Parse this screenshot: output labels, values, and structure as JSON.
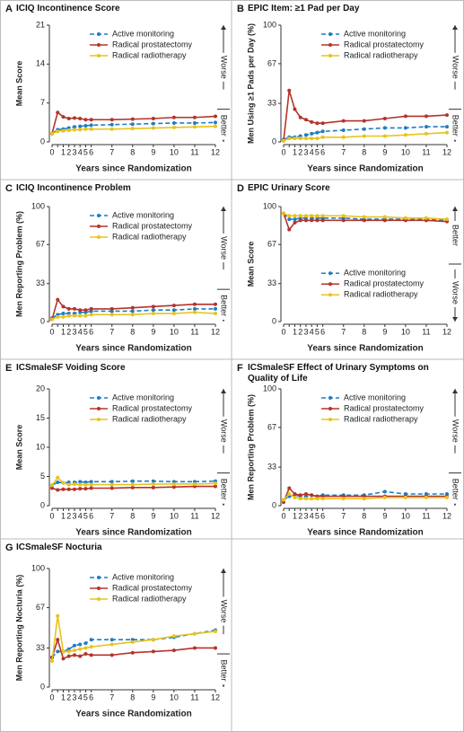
{
  "chart_data": [
    {
      "type": "line",
      "label": "A",
      "title": "ICIQ Incontinence Score",
      "y_label": "Mean Score",
      "x_label": "Years since Randomization",
      "categories": [
        "0",
        null,
        "1",
        "2",
        "3",
        "4",
        "5",
        "6",
        "7",
        "8",
        "9",
        "10",
        "11",
        "12"
      ],
      "ylim": [
        0,
        21
      ],
      "yticks": [
        0,
        7,
        14,
        21
      ],
      "legend": "top",
      "annotations": [
        "Worse",
        "Better"
      ],
      "series": [
        {
          "name": "Active monitoring",
          "color": "#1f7cc4",
          "dashed": true,
          "values": [
            1.5,
            2.2,
            2.3,
            2.5,
            2.7,
            2.8,
            2.9,
            3.0,
            3.1,
            3.2,
            3.3,
            3.4,
            3.4,
            3.5
          ]
        },
        {
          "name": "Radical prostatectomy",
          "color": "#b5332b",
          "dashed": false,
          "values": [
            1.5,
            5.3,
            4.5,
            4.2,
            4.3,
            4.2,
            4.0,
            4.0,
            4.0,
            4.1,
            4.2,
            4.4,
            4.4,
            4.6
          ]
        },
        {
          "name": "Radical radiotherapy",
          "color": "#e8c31c",
          "dashed": false,
          "values": [
            1.5,
            1.9,
            2.0,
            2.1,
            2.2,
            2.2,
            2.3,
            2.3,
            2.3,
            2.4,
            2.5,
            2.6,
            2.7,
            2.8
          ]
        }
      ]
    },
    {
      "type": "line",
      "label": "B",
      "title": "EPIC Item: ≥1 Pad per Day",
      "y_label": "Men Using ≥1 Pads per Day (%)",
      "x_label": "Years since Randomization",
      "categories": [
        "0",
        null,
        "1",
        "2",
        "3",
        "4",
        "5",
        "6",
        "7",
        "8",
        "9",
        "10",
        "11",
        "12"
      ],
      "ylim": [
        0,
        100
      ],
      "yticks": [
        0,
        33,
        67,
        100
      ],
      "legend": "top",
      "annotations": [
        "Worse",
        "Better"
      ],
      "series": [
        {
          "name": "Active monitoring",
          "color": "#1f7cc4",
          "dashed": true,
          "values": [
            2,
            4,
            4,
            5,
            6,
            7,
            8,
            9,
            10,
            11,
            12,
            12,
            13,
            13
          ]
        },
        {
          "name": "Radical prostatectomy",
          "color": "#b5332b",
          "dashed": false,
          "values": [
            1,
            44,
            28,
            21,
            19,
            17,
            16,
            16,
            18,
            18,
            20,
            22,
            22,
            23
          ]
        },
        {
          "name": "Radical radiotherapy",
          "color": "#e8c31c",
          "dashed": false,
          "values": [
            1,
            3,
            3,
            3,
            3,
            3,
            3,
            4,
            4,
            5,
            5,
            6,
            7,
            8
          ]
        }
      ]
    },
    {
      "type": "line",
      "label": "C",
      "title": "ICIQ Incontinence Problem",
      "y_label": "Men Reporting Problem (%)",
      "x_label": "Years since Randomization",
      "categories": [
        "0",
        null,
        "1",
        "2",
        "3",
        "4",
        "5",
        "6",
        "7",
        "8",
        "9",
        "10",
        "11",
        "12"
      ],
      "ylim": [
        0,
        100
      ],
      "yticks": [
        0,
        33,
        67,
        100
      ],
      "legend": "top",
      "annotations": [
        "Worse",
        "Better"
      ],
      "series": [
        {
          "name": "Active monitoring",
          "color": "#1f7cc4",
          "dashed": true,
          "values": [
            3,
            6,
            7,
            7,
            7,
            8,
            8,
            9,
            9,
            9,
            10,
            10,
            11,
            11
          ]
        },
        {
          "name": "Radical prostatectomy",
          "color": "#b5332b",
          "dashed": false,
          "values": [
            2,
            19,
            13,
            11,
            11,
            10,
            10,
            11,
            11,
            12,
            13,
            14,
            15,
            15
          ]
        },
        {
          "name": "Radical radiotherapy",
          "color": "#e8c31c",
          "dashed": false,
          "values": [
            2,
            4,
            4,
            5,
            5,
            5,
            5,
            6,
            6,
            6,
            7,
            7,
            8,
            7
          ]
        }
      ]
    },
    {
      "type": "line",
      "label": "D",
      "title": "EPIC Urinary Score",
      "y_label": "Mean Score",
      "x_label": "Years since Randomization",
      "categories": [
        "0",
        null,
        "1",
        "2",
        "3",
        "4",
        "5",
        "6",
        "7",
        "8",
        "9",
        "10",
        "11",
        "12"
      ],
      "ylim": [
        0,
        100
      ],
      "yticks": [
        0,
        33,
        67,
        100
      ],
      "legend": "bottom",
      "annotations": [
        "Better",
        "Worse"
      ],
      "series": [
        {
          "name": "Active monitoring",
          "color": "#1f7cc4",
          "dashed": true,
          "values": [
            94,
            89,
            89,
            90,
            90,
            90,
            90,
            90,
            90,
            89,
            89,
            89,
            89,
            88
          ]
        },
        {
          "name": "Radical prostatectomy",
          "color": "#b5332b",
          "dashed": false,
          "values": [
            94,
            80,
            86,
            88,
            88,
            88,
            88,
            88,
            88,
            88,
            88,
            88,
            88,
            87
          ]
        },
        {
          "name": "Radical radiotherapy",
          "color": "#e8c31c",
          "dashed": false,
          "values": [
            94,
            92,
            92,
            92,
            92,
            92,
            92,
            92,
            92,
            91,
            91,
            90,
            90,
            89
          ]
        }
      ]
    },
    {
      "type": "line",
      "label": "E",
      "title": "ICSmaleSF Voiding Score",
      "y_label": "Mean Score",
      "x_label": "Years since Randomization",
      "categories": [
        "0",
        null,
        "1",
        "2",
        "3",
        "4",
        "5",
        "6",
        "7",
        "8",
        "9",
        "10",
        "11",
        "12"
      ],
      "ylim": [
        0,
        20
      ],
      "yticks": [
        0,
        5,
        10,
        15,
        20
      ],
      "legend": "top",
      "annotations": [
        "Worse",
        "Better"
      ],
      "series": [
        {
          "name": "Active monitoring",
          "color": "#1f7cc4",
          "dashed": true,
          "values": [
            3.5,
            4.0,
            3.9,
            4.0,
            4.0,
            4.1,
            4.0,
            4.1,
            4.1,
            4.2,
            4.2,
            4.1,
            4.1,
            4.2
          ]
        },
        {
          "name": "Radical prostatectomy",
          "color": "#b5332b",
          "dashed": false,
          "values": [
            3.0,
            2.7,
            2.8,
            2.8,
            2.8,
            2.9,
            2.9,
            3.0,
            3.0,
            3.1,
            3.1,
            3.2,
            3.3,
            3.3
          ]
        },
        {
          "name": "Radical radiotherapy",
          "color": "#e8c31c",
          "dashed": false,
          "values": [
            3.5,
            4.8,
            3.9,
            3.6,
            3.7,
            3.6,
            3.6,
            3.6,
            3.6,
            3.6,
            3.7,
            3.7,
            3.7,
            3.8
          ]
        }
      ]
    },
    {
      "type": "line",
      "label": "F",
      "title": "ICSmaleSF Effect of Urinary Symptoms on Quality of Life",
      "y_label": "Men Reporting Problem (%)",
      "x_label": "Years since Randomization",
      "categories": [
        "0",
        null,
        "1",
        "2",
        "3",
        "4",
        "5",
        "6",
        "7",
        "8",
        "9",
        "10",
        "11",
        "12"
      ],
      "ylim": [
        0,
        100
      ],
      "yticks": [
        0,
        33,
        67,
        100
      ],
      "legend": "top",
      "annotations": [
        "Worse",
        "Better"
      ],
      "series": [
        {
          "name": "Active monitoring",
          "color": "#1f7cc4",
          "dashed": true,
          "values": [
            5,
            8,
            9,
            8,
            8,
            9,
            8,
            9,
            9,
            9,
            12,
            10,
            10,
            10
          ]
        },
        {
          "name": "Radical prostatectomy",
          "color": "#b5332b",
          "dashed": false,
          "values": [
            3,
            15,
            10,
            9,
            10,
            9,
            8,
            8,
            8,
            8,
            8,
            8,
            8,
            8
          ]
        },
        {
          "name": "Radical radiotherapy",
          "color": "#e8c31c",
          "dashed": false,
          "values": [
            5,
            10,
            7,
            6,
            6,
            6,
            6,
            6,
            6,
            6,
            7,
            7,
            7,
            7
          ]
        }
      ]
    },
    {
      "type": "line",
      "label": "G",
      "title": "ICSmaleSF Nocturia",
      "y_label": "Men Reporting Nocturia (%)",
      "x_label": "Years since Randomization",
      "categories": [
        "0",
        null,
        "1",
        "2",
        "3",
        "4",
        "5",
        "6",
        "7",
        "8",
        "9",
        "10",
        "11",
        "12"
      ],
      "ylim": [
        0,
        100
      ],
      "yticks": [
        0,
        33,
        67,
        100
      ],
      "legend": "top",
      "annotations": [
        "Worse",
        "Better"
      ],
      "series": [
        {
          "name": "Active monitoring",
          "color": "#1f7cc4",
          "dashed": true,
          "values": [
            25,
            30,
            30,
            32,
            35,
            36,
            37,
            40,
            40,
            40,
            40,
            42,
            45,
            48
          ]
        },
        {
          "name": "Radical prostatectomy",
          "color": "#b5332b",
          "dashed": false,
          "values": [
            25,
            40,
            24,
            26,
            27,
            26,
            28,
            27,
            27,
            29,
            30,
            31,
            33,
            33
          ]
        },
        {
          "name": "Radical radiotherapy",
          "color": "#e8c31c",
          "dashed": false,
          "values": [
            22,
            60,
            30,
            30,
            31,
            32,
            33,
            34,
            36,
            38,
            40,
            43,
            45,
            47
          ]
        }
      ]
    }
  ]
}
